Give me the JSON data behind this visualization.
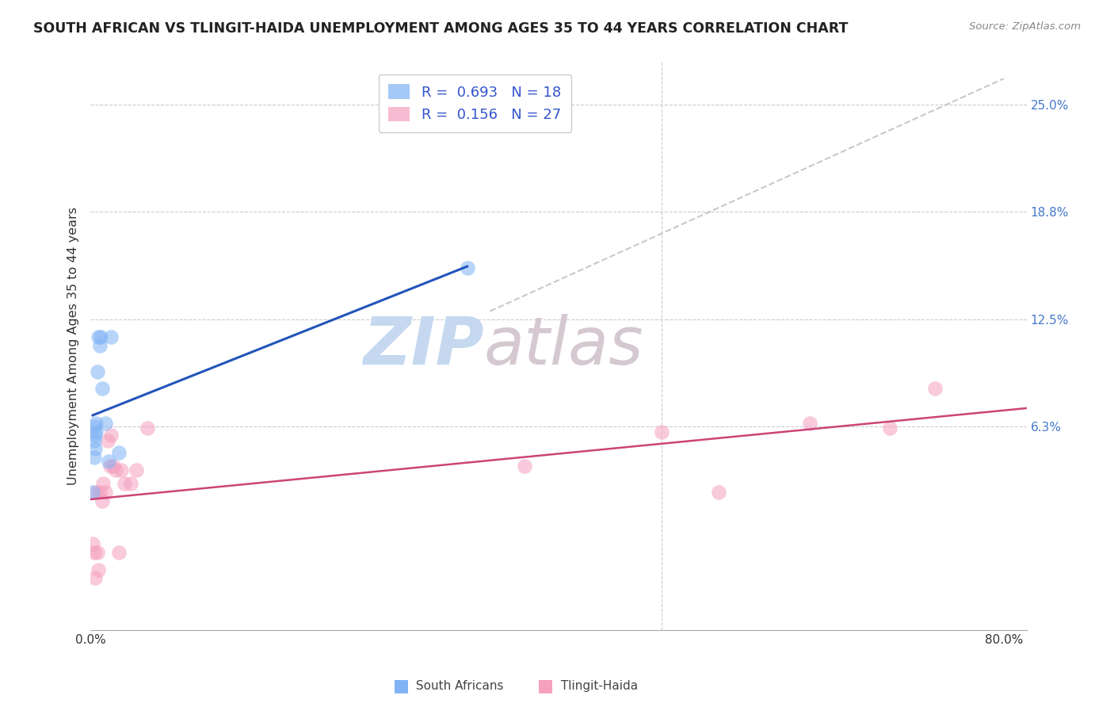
{
  "title": "SOUTH AFRICAN VS TLINGIT-HAIDA UNEMPLOYMENT AMONG AGES 35 TO 44 YEARS CORRELATION CHART",
  "source": "Source: ZipAtlas.com",
  "ylabel": "Unemployment Among Ages 35 to 44 years",
  "xlim": [
    0.0,
    0.82
  ],
  "ylim": [
    -0.055,
    0.275
  ],
  "yticks": [
    0.063,
    0.125,
    0.188,
    0.25
  ],
  "ytick_labels": [
    "6.3%",
    "12.5%",
    "18.8%",
    "25.0%"
  ],
  "xticks": [
    0.0,
    0.1,
    0.2,
    0.3,
    0.4,
    0.5,
    0.6,
    0.7,
    0.8
  ],
  "xtick_labels": [
    "0.0%",
    "",
    "",
    "",
    "",
    "",
    "",
    "",
    "80.0%"
  ],
  "south_african_x": [
    0.002,
    0.003,
    0.003,
    0.003,
    0.004,
    0.004,
    0.005,
    0.005,
    0.006,
    0.007,
    0.008,
    0.009,
    0.01,
    0.013,
    0.016,
    0.018,
    0.025,
    0.33
  ],
  "south_african_y": [
    0.025,
    0.045,
    0.055,
    0.063,
    0.05,
    0.058,
    0.06,
    0.065,
    0.095,
    0.115,
    0.11,
    0.115,
    0.085,
    0.065,
    0.043,
    0.115,
    0.048,
    0.155
  ],
  "tlingit_x": [
    0.002,
    0.003,
    0.004,
    0.005,
    0.006,
    0.007,
    0.008,
    0.01,
    0.011,
    0.013,
    0.015,
    0.017,
    0.018,
    0.02,
    0.022,
    0.025,
    0.027,
    0.03,
    0.035,
    0.04,
    0.05,
    0.38,
    0.5,
    0.55,
    0.63,
    0.7,
    0.74
  ],
  "tlingit_y": [
    -0.005,
    -0.01,
    -0.025,
    0.025,
    -0.01,
    -0.02,
    0.025,
    0.02,
    0.03,
    0.025,
    0.055,
    0.04,
    0.058,
    0.04,
    0.038,
    -0.01,
    0.038,
    0.03,
    0.03,
    0.038,
    0.062,
    0.04,
    0.06,
    0.025,
    0.065,
    0.062,
    0.085
  ],
  "sa_R": "0.693",
  "sa_N": "18",
  "th_R": "0.156",
  "th_N": "27",
  "sa_color": "#7fb3f5",
  "th_color": "#f5a0be",
  "sa_line_color": "#2255bb",
  "th_line_color": "#cc4477",
  "diagonal_color": "#bbbbbb",
  "background_color": "#ffffff",
  "grid_color": "#cccccc",
  "watermark_zip_color": "#c5d8f0",
  "watermark_atlas_color": "#d5c8d0"
}
